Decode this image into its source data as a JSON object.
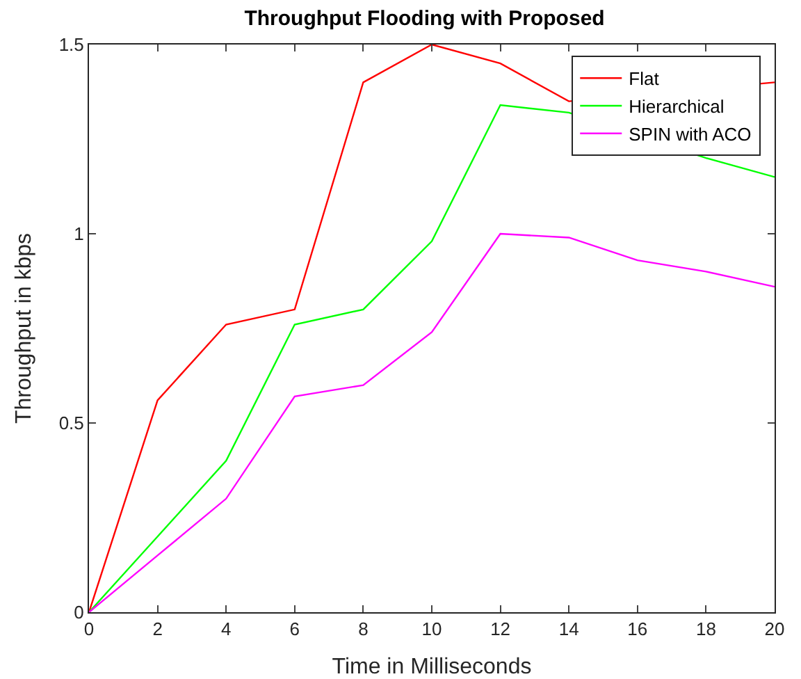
{
  "chart_data": {
    "type": "line",
    "title": "Throughput Flooding with Proposed",
    "xlabel": "Time in Milliseconds",
    "ylabel": "Throughput in kbps",
    "x": [
      0,
      2,
      4,
      6,
      8,
      10,
      12,
      14,
      16,
      18,
      20
    ],
    "series": [
      {
        "name": "Flat",
        "color": "#ff0000",
        "values": [
          0,
          0.56,
          0.76,
          0.8,
          1.4,
          1.5,
          1.45,
          1.35,
          null,
          null,
          1.4
        ]
      },
      {
        "name": "Hierarchical",
        "color": "#00ff00",
        "values": [
          0,
          0.2,
          0.4,
          0.76,
          0.8,
          0.98,
          1.34,
          1.32,
          null,
          1.2,
          1.15
        ]
      },
      {
        "name": "SPIN with ACO",
        "color": "#ff00ff",
        "values": [
          0,
          0.15,
          0.3,
          0.57,
          0.6,
          0.74,
          1.0,
          0.99,
          0.93,
          0.9,
          0.86
        ]
      }
    ],
    "xlim": [
      0,
      20
    ],
    "xticks": [
      0,
      2,
      4,
      6,
      8,
      10,
      12,
      14,
      16,
      18,
      20
    ],
    "ylim": [
      0,
      1.5
    ],
    "yticks": [
      0,
      0.5,
      1,
      1.5
    ],
    "grid": false,
    "legend": "top right",
    "marker": "none",
    "line_style": "solid"
  }
}
